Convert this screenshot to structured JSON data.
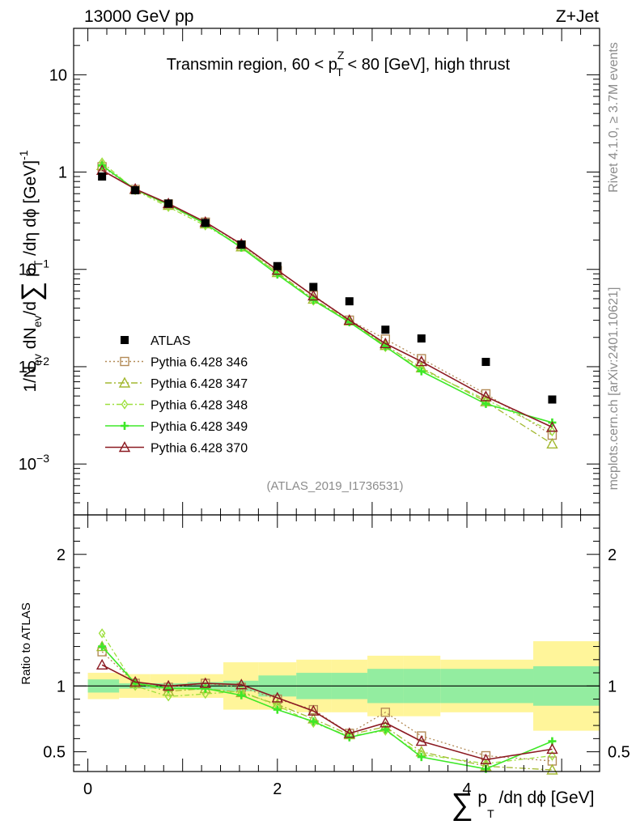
{
  "header": {
    "energy": "13000 GeV pp",
    "process": "Z+Jet"
  },
  "side": {
    "rivet": "Rivet 4.1.0, ≥ 3.7M events",
    "mcplots": "mcplots.cern.ch [arXiv:2401.10621]"
  },
  "chart_data": {
    "type": "scatter",
    "title": "Transmin region, 60 < p_T^Z < 80 [GeV], high thrust",
    "analysis_id": "(ATLAS_2019_I1736531)",
    "xlabel": "∑ p_T/dη dϕ [GeV]",
    "ylabel": "1/N_ev dN_ev/d∑ p_T/dη dϕ [GeV]^-1",
    "ratio_ylabel": "Ratio to ATLAS",
    "xlim": [
      -0.15,
      5.4
    ],
    "ylim": [
      0.0003,
      30
    ],
    "yscale": "log",
    "ratio_ylim": [
      0.35,
      2.3
    ],
    "x_ticks": [
      "0",
      "2",
      "4"
    ],
    "y_tick_labels": [
      {
        "mantissa": "10",
        "exp": "−3"
      },
      {
        "mantissa": "10",
        "exp": "−2"
      },
      {
        "mantissa": "10",
        "exp": "−1"
      },
      {
        "mantissa": "1",
        "exp": ""
      },
      {
        "mantissa": "10",
        "exp": ""
      }
    ],
    "ratio_ticks": [
      "0.5",
      "1",
      "2"
    ],
    "bin_edges": [
      0.0,
      0.33,
      0.66,
      1.05,
      1.43,
      1.8,
      2.2,
      2.57,
      2.95,
      3.33,
      3.72,
      4.7,
      5.4
    ],
    "x": [
      0.15,
      0.5,
      0.85,
      1.24,
      1.62,
      2.0,
      2.38,
      2.76,
      3.14,
      3.52,
      4.2,
      4.9
    ],
    "data": {
      "name": "ATLAS",
      "values": [
        0.9,
        0.65,
        0.475,
        0.3,
        0.18,
        0.108,
        0.066,
        0.047,
        0.024,
        0.0195,
        0.0112,
        0.0046
      ],
      "band_inner": [
        0.05,
        0.02,
        0.02,
        0.03,
        0.04,
        0.08,
        0.1,
        0.1,
        0.13,
        0.13,
        0.13,
        0.15
      ],
      "band_outer": [
        0.1,
        0.09,
        0.09,
        0.09,
        0.18,
        0.18,
        0.2,
        0.2,
        0.23,
        0.23,
        0.2,
        0.34
      ]
    },
    "series": [
      {
        "name": "Pythia 6.428 346",
        "color": "#b38b57",
        "dash": "2,3",
        "marker": "square",
        "ratio": [
          1.26,
          1.02,
          0.99,
          1.02,
          0.99,
          0.9,
          0.82,
          0.64,
          0.8,
          0.62,
          0.47,
          0.43
        ]
      },
      {
        "name": "Pythia 6.428 347",
        "color": "#a3b830",
        "dash": "8,3,2,3",
        "marker": "triangle",
        "ratio": [
          1.3,
          1.02,
          0.96,
          0.98,
          0.95,
          0.86,
          0.75,
          0.63,
          0.69,
          0.5,
          0.39,
          0.35
        ]
      },
      {
        "name": "Pythia 6.428 348",
        "color": "#9ee03f",
        "dash": "6,3,2,3",
        "marker": "diamond",
        "ratio": [
          1.4,
          1.0,
          0.92,
          0.94,
          0.96,
          0.85,
          0.72,
          0.62,
          0.66,
          0.48,
          0.41,
          0.47
        ]
      },
      {
        "name": "Pythia 6.428 349",
        "color": "#3ee828",
        "dash": "",
        "marker": "plus",
        "ratio": [
          1.3,
          1.02,
          0.98,
          0.98,
          0.93,
          0.82,
          0.73,
          0.61,
          0.67,
          0.46,
          0.37,
          0.58
        ]
      },
      {
        "name": "Pythia 6.428 370",
        "color": "#8b1a22",
        "dash": "",
        "marker": "triangle",
        "ratio": [
          1.16,
          1.03,
          1.0,
          1.02,
          1.01,
          0.91,
          0.81,
          0.64,
          0.72,
          0.58,
          0.44,
          0.52
        ]
      }
    ]
  }
}
